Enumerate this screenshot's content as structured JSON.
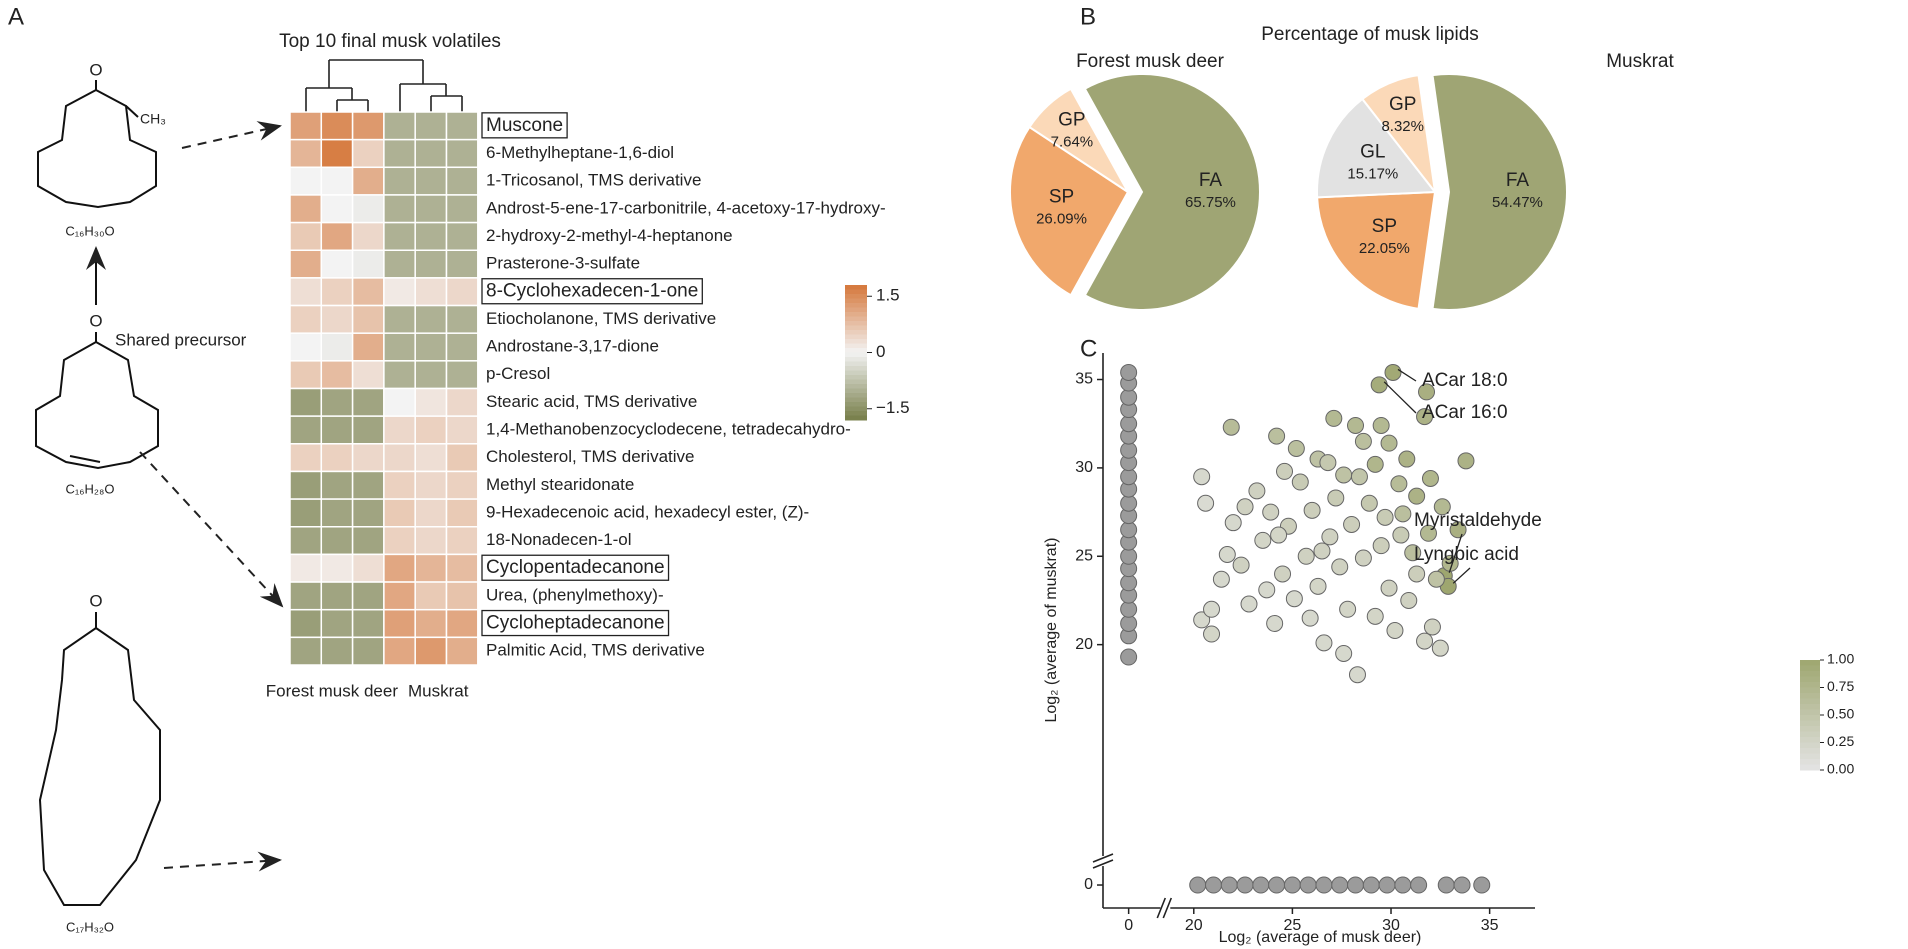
{
  "panel_labels": [
    "A",
    "B",
    "C"
  ],
  "panel_b_title": "Percentage of musk lipids",
  "structures": {
    "oxygen": "O",
    "methyl": "CH₃",
    "precursor_label": "Shared precursor",
    "formulas": [
      "C₁₆H₃₀O",
      "C₁₆H₂₈O",
      "C₁₇H₃₂O"
    ]
  },
  "chart_data": [
    {
      "type": "heatmap",
      "title": "Top 10 final musk volatiles",
      "rows": [
        "Muscone",
        "6-Methylheptane-1,6-diol",
        "1-Tricosanol, TMS derivative",
        "Androst-5-ene-17-carbonitrile, 4-acetoxy-17-hydroxy-",
        "2-hydroxy-2-methyl-4-heptanone",
        "Prasterone-3-sulfate",
        "8-Cyclohexadecen-1-one",
        "Etiocholanone, TMS derivative",
        "Androstane-3,17-dione",
        "p-Cresol",
        "Stearic acid, TMS derivative",
        "1,4-Methanobenzocyclodecene, tetradecahydro-",
        "Cholesterol, TMS derivative",
        "Methyl stearidonate",
        "9-Hexadecenoic acid, hexadecyl ester, (Z)-",
        "18-Nonadecen-1-ol",
        "Cyclopentadecanone",
        "Urea, (phenylmethoxy)-",
        "Cycloheptadecanone",
        "Palmitic Acid, TMS derivative"
      ],
      "column_groups": [
        "Forest musk deer",
        "Muskrat"
      ],
      "values": [
        [
          1.2,
          1.5,
          1.3,
          -1,
          -1,
          -1
        ],
        [
          0.9,
          1.7,
          0.5,
          -1,
          -1,
          -1
        ],
        [
          0,
          0,
          1,
          -1,
          -1,
          -1
        ],
        [
          1,
          0,
          -0.1,
          -1,
          -1,
          -1
        ],
        [
          0.6,
          1.1,
          0.4,
          -1,
          -1,
          -1
        ],
        [
          1,
          0,
          -0.1,
          -1,
          -1,
          -1
        ],
        [
          0.3,
          0.5,
          0.8,
          0.15,
          0.3,
          0.4
        ],
        [
          0.5,
          0.4,
          0.7,
          -1,
          -1,
          -1
        ],
        [
          0,
          -0.1,
          1,
          -1,
          -1,
          -1
        ],
        [
          0.6,
          0.8,
          0.3,
          -1,
          -1,
          -1
        ],
        [
          -1.3,
          -1.2,
          -1.2,
          0,
          0.2,
          0.4
        ],
        [
          -1.2,
          -1.2,
          -1.2,
          0.4,
          0.5,
          0.4
        ],
        [
          0.5,
          0.5,
          0.4,
          0.4,
          0.3,
          0.6
        ],
        [
          -1.3,
          -1.2,
          -1.2,
          0.5,
          0.4,
          0.5
        ],
        [
          -1.3,
          -1.2,
          -1.2,
          0.6,
          0.4,
          0.6
        ],
        [
          -1.2,
          -1.2,
          -1.2,
          0.5,
          0.4,
          0.5
        ],
        [
          0.15,
          0.15,
          0.3,
          1.1,
          0.9,
          0.8
        ],
        [
          -1.2,
          -1.2,
          -1.2,
          1.1,
          0.6,
          0.7
        ],
        [
          -1.3,
          -1.2,
          -1.2,
          1.2,
          1,
          1.1
        ],
        [
          -1.2,
          -1.2,
          -1.2,
          1.1,
          1.3,
          1
        ]
      ],
      "boxed_rows": [
        0,
        6,
        16,
        18
      ],
      "colors": {
        "high": "#d5773a",
        "mid": "#f3f3f3",
        "low": "#767d48"
      },
      "clim": [
        -1.8,
        1.8
      ],
      "colorbar_ticks": [
        1.5,
        0,
        {
          "value": -1.5,
          "label": "−1.5"
        }
      ]
    },
    {
      "type": "pie",
      "title": "Forest musk deer",
      "categories": [
        "FA",
        "SP",
        "GP"
      ],
      "values": [
        65.75,
        26.09,
        7.64
      ],
      "value_labels": [
        "65.75%",
        "26.09%",
        "7.64%"
      ],
      "colors": [
        "#9fa574",
        "#f1a86c",
        "#fbd9b8"
      ],
      "explode": [
        true,
        false,
        false
      ]
    },
    {
      "type": "pie",
      "title": "Muskrat",
      "categories": [
        "FA",
        "SP",
        "GL",
        "GP"
      ],
      "values": [
        54.47,
        22.05,
        15.17,
        8.32
      ],
      "value_labels": [
        "54.47%",
        "22.05%",
        "15.17%",
        "8.32%"
      ],
      "colors": [
        "#9fa574",
        "#f1a86c",
        "#e2e2e2",
        "#fbd9b8"
      ],
      "explode": [
        true,
        false,
        false,
        false
      ]
    },
    {
      "type": "scatter",
      "xlabel": "Log₂ (average of musk deer)",
      "ylabel": "Log₂ (average of muskrat)",
      "xlim": [
        -1.3,
        37.3
      ],
      "xbreak": [
        1.3,
        19.2
      ],
      "ylim": [
        -1.3,
        36.5
      ],
      "ybreak": [
        1.3,
        18
      ],
      "xticks": [
        0,
        20,
        25,
        30,
        35
      ],
      "yticks": [
        0,
        20,
        25,
        30,
        35
      ],
      "colorscale": [
        "#e4e4e4",
        "#9ea66f"
      ],
      "clim": [
        0,
        1
      ],
      "colorbar_ticks": [
        {
          "value": 1,
          "label": "1.00"
        },
        {
          "value": 0.75,
          "label": "0.75"
        },
        {
          "value": 0.5,
          "label": "0.50"
        },
        {
          "value": 0.25,
          "label": "0.25"
        },
        {
          "value": 0,
          "label": "0.00"
        }
      ],
      "series": [
        {
          "color": "#9b9b9b",
          "x": [
            0,
            0,
            0,
            0,
            0,
            0,
            0,
            0,
            0,
            0,
            0,
            0,
            0,
            0,
            0,
            0,
            0,
            0,
            0,
            0,
            0,
            0
          ],
          "y": [
            19.3,
            20.5,
            21.2,
            22,
            22.8,
            23.5,
            24.3,
            25,
            25.8,
            26.5,
            27.3,
            28,
            28.8,
            29.5,
            30.3,
            31,
            31.8,
            32.5,
            33.3,
            34,
            34.8,
            35.4
          ]
        },
        {
          "color": "#9b9b9b",
          "x": [
            20.2,
            21,
            21.8,
            22.6,
            23.4,
            24.2,
            25,
            25.8,
            26.6,
            27.4,
            28.2,
            29,
            29.8,
            30.6,
            31.4,
            32.8,
            33.6,
            34.6
          ],
          "y": [
            0,
            0,
            0,
            0,
            0,
            0,
            0,
            0,
            0,
            0,
            0,
            0,
            0,
            0,
            0,
            0,
            0,
            0
          ]
        },
        {
          "x": [
            30.1,
            29.4,
            31.8,
            33.8,
            31.7,
            29.5,
            27.1,
            21.9,
            24.2,
            28.2,
            29.2,
            30.8,
            32,
            31.3,
            32.6,
            33.4,
            32.7,
            32.9,
            28.6,
            30.4,
            31.9,
            30.6,
            33,
            26.3,
            27.6,
            25.2,
            29.9,
            31.1,
            32.3,
            20.4,
            20.6,
            20.4,
            20.9,
            21.4,
            22,
            22.4,
            22.8,
            23.2,
            23.5,
            23.9,
            24.1,
            24.5,
            24.8,
            25.1,
            25.4,
            25.7,
            26,
            26.3,
            26.6,
            26.9,
            27.2,
            27.4,
            27.8,
            28,
            28.3,
            28.6,
            28.9,
            29.2,
            29.5,
            29.9,
            30.2,
            30.5,
            30.9,
            31.3,
            31.7,
            32.1,
            32.5,
            22.6,
            24.6,
            26.8,
            23.7,
            28.4,
            25.9,
            27.6,
            29.7,
            24.3,
            21.7,
            20.9,
            26.5
          ],
          "y": [
            35.4,
            34.7,
            34.3,
            30.4,
            32.9,
            32.4,
            32.8,
            32.3,
            31.8,
            32.4,
            30.2,
            30.5,
            29.4,
            28.4,
            27.8,
            26.5,
            23.9,
            23.3,
            31.5,
            29.1,
            26.3,
            27.4,
            24.6,
            30.5,
            29.6,
            31.1,
            31.4,
            25.2,
            23.7,
            29.5,
            28,
            21.4,
            20.6,
            23.7,
            26.9,
            24.5,
            22.3,
            28.7,
            25.9,
            27.5,
            21.2,
            24,
            26.7,
            22.6,
            29.2,
            25,
            27.6,
            23.3,
            20.1,
            26.1,
            28.3,
            24.4,
            22,
            26.8,
            18.3,
            24.9,
            28,
            21.6,
            25.6,
            23.2,
            20.8,
            26.2,
            22.5,
            24,
            20.2,
            21,
            19.8,
            27.8,
            29.8,
            30.3,
            23.1,
            29.5,
            21.5,
            19.5,
            27.2,
            26.2,
            25.1,
            22,
            25.3
          ],
          "values": [
            0.95,
            0.9,
            0.85,
            0.8,
            0.8,
            0.7,
            0.7,
            0.65,
            0.6,
            0.7,
            0.75,
            0.8,
            0.75,
            0.8,
            0.7,
            0.85,
            1,
            1,
            0.6,
            0.65,
            0.7,
            0.6,
            0.75,
            0.55,
            0.55,
            0.6,
            0.7,
            0.6,
            0.55,
            0.2,
            0.15,
            0.2,
            0.25,
            0.2,
            0.2,
            0.3,
            0.2,
            0.3,
            0.25,
            0.3,
            0.2,
            0.3,
            0.35,
            0.2,
            0.4,
            0.3,
            0.35,
            0.25,
            0.2,
            0.3,
            0.4,
            0.3,
            0.25,
            0.35,
            0.2,
            0.3,
            0.45,
            0.25,
            0.35,
            0.3,
            0.25,
            0.4,
            0.3,
            0.35,
            0.25,
            0.3,
            0.25,
            0.3,
            0.35,
            0.45,
            0.2,
            0.5,
            0.2,
            0.2,
            0.4,
            0.25,
            0.2,
            0.2,
            0.3
          ]
        }
      ],
      "annotations": [
        {
          "text": "ACar 18:0",
          "x": 30.1,
          "y": 35.4
        },
        {
          "text": "ACar 16:0",
          "x": 29.4,
          "y": 34.7
        },
        {
          "text": "Myristaldehyde",
          "x": 32.7,
          "y": 23.9
        },
        {
          "text": "Lyngbic acid",
          "x": 32.9,
          "y": 23.3
        }
      ]
    }
  ]
}
